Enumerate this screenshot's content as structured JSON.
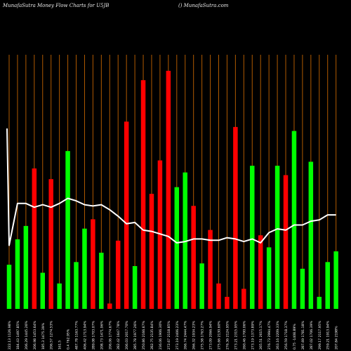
{
  "header": {
    "left": "MunafaSutra  Money Flow  Charts for U5JB",
    "right": "() MunafaSutra.com"
  },
  "chart_data": {
    "type": "bar",
    "title": "Money Flow Charts for U5JB",
    "colors": {
      "up": "#00ff00",
      "down": "#ff0000",
      "line": "#ffffff",
      "grid": "#b05a00",
      "background": "#000000"
    },
    "bars": [
      {
        "label": "222.13 1126.98%",
        "value": 33,
        "color": "up"
      },
      {
        "label": "184.43 1497.85%",
        "value": 52,
        "color": "up"
      },
      {
        "label": "206.29 1445.26%",
        "value": 62,
        "color": "up"
      },
      {
        "label": "206.98 1453.64%",
        "value": 105,
        "color": "down"
      },
      {
        "label": "185.3 1475.39%",
        "value": 27,
        "color": "up"
      },
      {
        "label": "206.57 1274.53%",
        "value": 97,
        "color": "down"
      },
      {
        "label": "161.5",
        "value": 19,
        "color": "up"
      },
      {
        "label": "0.4 762.95%",
        "value": 118,
        "color": "up"
      },
      {
        "label": "487.78 1163.77%",
        "value": 35,
        "color": "up"
      },
      {
        "label": "406.42 1713.94%",
        "value": 60,
        "color": "up"
      },
      {
        "label": "289.08 1703.07%",
        "value": 67,
        "color": "down"
      },
      {
        "label": "208.73 1471.96%",
        "value": 42,
        "color": "up"
      },
      {
        "label": "206.06 1774.67%",
        "value": 4,
        "color": "down"
      },
      {
        "label": "282.42 1647.78%",
        "value": 51,
        "color": "down"
      },
      {
        "label": "206.03 2017.70%",
        "value": 140,
        "color": "down"
      },
      {
        "label": "285.78 1977.26%",
        "value": 32,
        "color": "up"
      },
      {
        "label": "250.86 2166.67%",
        "value": 171,
        "color": "down"
      },
      {
        "label": "282.75 2135.84%",
        "value": 86,
        "color": "down"
      },
      {
        "label": "236.06 1906.30%",
        "value": 111,
        "color": "down"
      },
      {
        "label": "272.67 2118.85%",
        "value": 178,
        "color": "down"
      },
      {
        "label": "273.19 2406.23%",
        "value": 91,
        "color": "up"
      },
      {
        "label": "266.74 2444.47%",
        "value": 102,
        "color": "up"
      },
      {
        "label": "266.32 1934.23%",
        "value": 77,
        "color": "down"
      },
      {
        "label": "275.58 1763.27%",
        "value": 34,
        "color": "up"
      },
      {
        "label": "273.09 2066.94%",
        "value": 59,
        "color": "down"
      },
      {
        "label": "275.66 2130.60%",
        "value": 19,
        "color": "down"
      },
      {
        "label": "276.36 2124.95%",
        "value": 9,
        "color": "down"
      },
      {
        "label": "273.21 2315.95%",
        "value": 136,
        "color": "down"
      },
      {
        "label": "260.46 1700.06%",
        "value": 15,
        "color": "down"
      },
      {
        "label": "273.19 1373.89%",
        "value": 107,
        "color": "up"
      },
      {
        "label": "265.51 2615.17%",
        "value": 55,
        "color": "down"
      },
      {
        "label": "276.73 2994.47%",
        "value": 46,
        "color": "up"
      },
      {
        "label": "263.16 2209.33%",
        "value": 107,
        "color": "up"
      },
      {
        "label": "256.59 1718.37%",
        "value": 100,
        "color": "down"
      },
      {
        "label": "0.75 -1408.89%",
        "value": 133,
        "color": "up"
      },
      {
        "label": "287.69 1781.18%",
        "value": 30,
        "color": "up"
      },
      {
        "label": "287.02 1706.39%",
        "value": 110,
        "color": "up"
      },
      {
        "label": "299.17 2117.95%",
        "value": 9,
        "color": "up"
      },
      {
        "label": "259.21 1913.94%",
        "value": 35,
        "color": "up"
      },
      {
        "label": "207.84 2198%",
        "value": 43,
        "color": "up"
      }
    ],
    "line": [
      150,
      117,
      117,
      120,
      118,
      120,
      117,
      113,
      115,
      118,
      119,
      118,
      122,
      127,
      133,
      132,
      138,
      139,
      141,
      143,
      148,
      147,
      145,
      145,
      146,
      146,
      144,
      145,
      147,
      145,
      148,
      140,
      137,
      138,
      134,
      134,
      131,
      130,
      126,
      126
    ],
    "line_start": 58,
    "ylim": [
      0,
      190
    ],
    "line_ylim": [
      0,
      200
    ],
    "grid": true,
    "legend": "none"
  }
}
